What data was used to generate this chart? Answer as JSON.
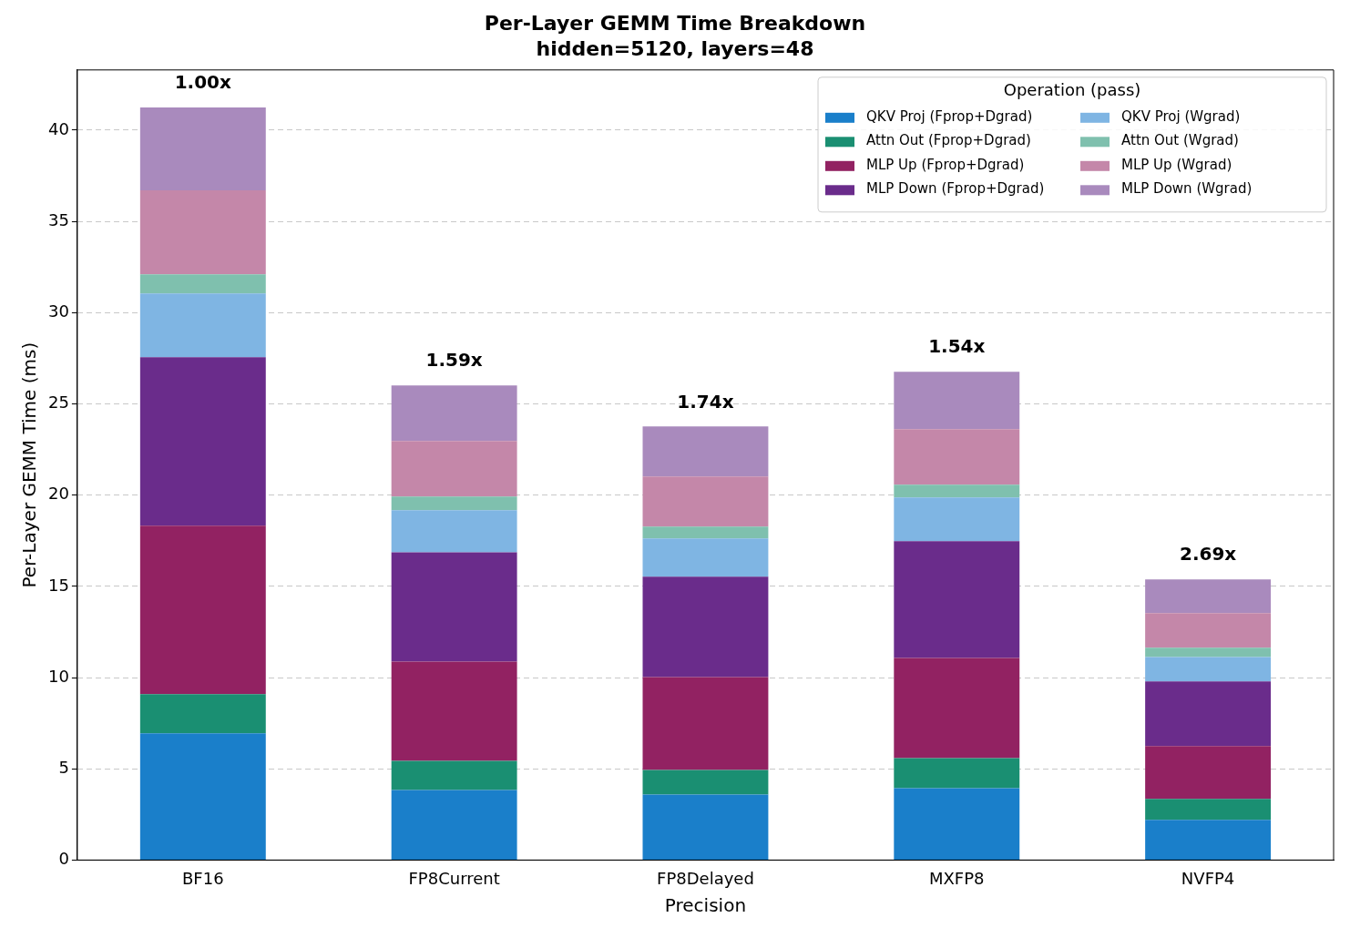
{
  "chart_data": {
    "type": "bar",
    "title": "Per-Layer GEMM Time Breakdown",
    "subtitle": "hidden=5120, layers=48",
    "xlabel": "Precision",
    "ylabel": "Per-Layer GEMM Time (ms)",
    "legend_title": "Operation (pass)",
    "categories": [
      "BF16",
      "FP8Current",
      "FP8Delayed",
      "MXFP8",
      "NVFP4"
    ],
    "stacked": true,
    "series": [
      {
        "name": "QKV Proj (Fprop+Dgrad)",
        "color": "#1a7fca",
        "values": [
          6.94,
          3.84,
          3.59,
          3.94,
          2.2
        ]
      },
      {
        "name": "Attn Out (Fprop+Dgrad)",
        "color": "#1a8f72",
        "values": [
          2.15,
          1.6,
          1.35,
          1.65,
          1.15
        ]
      },
      {
        "name": "MLP Up (Fprop+Dgrad)",
        "color": "#922262",
        "values": [
          9.23,
          5.44,
          5.09,
          5.49,
          2.89
        ]
      },
      {
        "name": "MLP Down (Fprop+Dgrad)",
        "color": "#6a2c8b",
        "values": [
          9.24,
          5.99,
          5.5,
          6.39,
          3.55
        ]
      },
      {
        "name": "QKV Proj (Wgrad)",
        "color": "#7fb5e3",
        "values": [
          3.49,
          2.3,
          2.09,
          2.4,
          1.34
        ]
      },
      {
        "name": "Attn Out (Wgrad)",
        "color": "#7fc0ae",
        "values": [
          1.05,
          0.75,
          0.65,
          0.7,
          0.5
        ]
      },
      {
        "name": "MLP Up (Wgrad)",
        "color": "#c487a9",
        "values": [
          4.6,
          3.05,
          2.75,
          3.04,
          1.9
        ]
      },
      {
        "name": "MLP Down (Wgrad)",
        "color": "#a98abd",
        "values": [
          4.54,
          3.04,
          2.74,
          3.15,
          1.85
        ]
      }
    ],
    "ylim": [
      0,
      43.3
    ],
    "yticks": [
      0,
      5,
      10,
      15,
      20,
      25,
      30,
      35,
      40
    ],
    "grid": "y",
    "legend": "top right",
    "annotations": [
      {
        "text": "1.00x",
        "x": "BF16",
        "y": 41.24
      },
      {
        "text": "1.59x",
        "x": "FP8Current",
        "y": 26.01
      },
      {
        "text": "1.74x",
        "x": "FP8Delayed",
        "y": 23.76
      },
      {
        "text": "1.54x",
        "x": "MXFP8",
        "y": 26.76
      },
      {
        "text": "2.69x",
        "x": "NVFP4",
        "y": 15.38
      }
    ]
  }
}
